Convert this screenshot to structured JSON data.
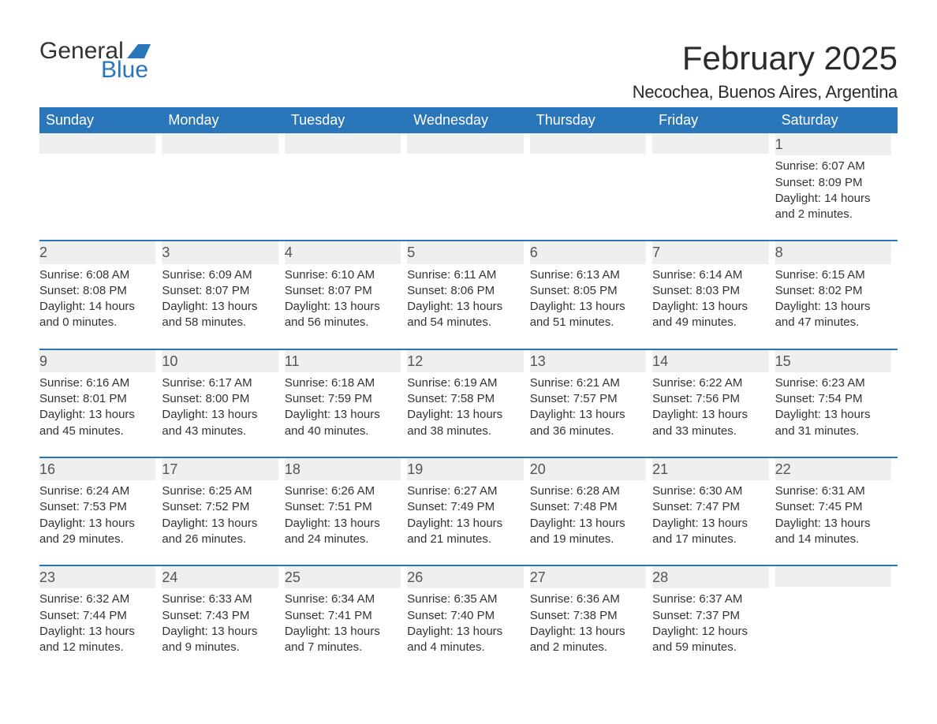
{
  "brand": {
    "general": "General",
    "blue": "Blue"
  },
  "header": {
    "month_title": "February 2025",
    "location": "Necochea, Buenos Aires, Argentina"
  },
  "colors": {
    "primary": "#2a76bb",
    "header_bg": "#2a76bb",
    "strip_bg": "#efefef",
    "text": "#333333",
    "day_num": "#555555",
    "bg": "#ffffff"
  },
  "dow": [
    "Sunday",
    "Monday",
    "Tuesday",
    "Wednesday",
    "Thursday",
    "Friday",
    "Saturday"
  ],
  "weeks": [
    [
      null,
      null,
      null,
      null,
      null,
      null,
      {
        "n": "1",
        "sr": "Sunrise: 6:07 AM",
        "ss": "Sunset: 8:09 PM",
        "dl": "Daylight: 14 hours and 2 minutes."
      }
    ],
    [
      {
        "n": "2",
        "sr": "Sunrise: 6:08 AM",
        "ss": "Sunset: 8:08 PM",
        "dl": "Daylight: 14 hours and 0 minutes."
      },
      {
        "n": "3",
        "sr": "Sunrise: 6:09 AM",
        "ss": "Sunset: 8:07 PM",
        "dl": "Daylight: 13 hours and 58 minutes."
      },
      {
        "n": "4",
        "sr": "Sunrise: 6:10 AM",
        "ss": "Sunset: 8:07 PM",
        "dl": "Daylight: 13 hours and 56 minutes."
      },
      {
        "n": "5",
        "sr": "Sunrise: 6:11 AM",
        "ss": "Sunset: 8:06 PM",
        "dl": "Daylight: 13 hours and 54 minutes."
      },
      {
        "n": "6",
        "sr": "Sunrise: 6:13 AM",
        "ss": "Sunset: 8:05 PM",
        "dl": "Daylight: 13 hours and 51 minutes."
      },
      {
        "n": "7",
        "sr": "Sunrise: 6:14 AM",
        "ss": "Sunset: 8:03 PM",
        "dl": "Daylight: 13 hours and 49 minutes."
      },
      {
        "n": "8",
        "sr": "Sunrise: 6:15 AM",
        "ss": "Sunset: 8:02 PM",
        "dl": "Daylight: 13 hours and 47 minutes."
      }
    ],
    [
      {
        "n": "9",
        "sr": "Sunrise: 6:16 AM",
        "ss": "Sunset: 8:01 PM",
        "dl": "Daylight: 13 hours and 45 minutes."
      },
      {
        "n": "10",
        "sr": "Sunrise: 6:17 AM",
        "ss": "Sunset: 8:00 PM",
        "dl": "Daylight: 13 hours and 43 minutes."
      },
      {
        "n": "11",
        "sr": "Sunrise: 6:18 AM",
        "ss": "Sunset: 7:59 PM",
        "dl": "Daylight: 13 hours and 40 minutes."
      },
      {
        "n": "12",
        "sr": "Sunrise: 6:19 AM",
        "ss": "Sunset: 7:58 PM",
        "dl": "Daylight: 13 hours and 38 minutes."
      },
      {
        "n": "13",
        "sr": "Sunrise: 6:21 AM",
        "ss": "Sunset: 7:57 PM",
        "dl": "Daylight: 13 hours and 36 minutes."
      },
      {
        "n": "14",
        "sr": "Sunrise: 6:22 AM",
        "ss": "Sunset: 7:56 PM",
        "dl": "Daylight: 13 hours and 33 minutes."
      },
      {
        "n": "15",
        "sr": "Sunrise: 6:23 AM",
        "ss": "Sunset: 7:54 PM",
        "dl": "Daylight: 13 hours and 31 minutes."
      }
    ],
    [
      {
        "n": "16",
        "sr": "Sunrise: 6:24 AM",
        "ss": "Sunset: 7:53 PM",
        "dl": "Daylight: 13 hours and 29 minutes."
      },
      {
        "n": "17",
        "sr": "Sunrise: 6:25 AM",
        "ss": "Sunset: 7:52 PM",
        "dl": "Daylight: 13 hours and 26 minutes."
      },
      {
        "n": "18",
        "sr": "Sunrise: 6:26 AM",
        "ss": "Sunset: 7:51 PM",
        "dl": "Daylight: 13 hours and 24 minutes."
      },
      {
        "n": "19",
        "sr": "Sunrise: 6:27 AM",
        "ss": "Sunset: 7:49 PM",
        "dl": "Daylight: 13 hours and 21 minutes."
      },
      {
        "n": "20",
        "sr": "Sunrise: 6:28 AM",
        "ss": "Sunset: 7:48 PM",
        "dl": "Daylight: 13 hours and 19 minutes."
      },
      {
        "n": "21",
        "sr": "Sunrise: 6:30 AM",
        "ss": "Sunset: 7:47 PM",
        "dl": "Daylight: 13 hours and 17 minutes."
      },
      {
        "n": "22",
        "sr": "Sunrise: 6:31 AM",
        "ss": "Sunset: 7:45 PM",
        "dl": "Daylight: 13 hours and 14 minutes."
      }
    ],
    [
      {
        "n": "23",
        "sr": "Sunrise: 6:32 AM",
        "ss": "Sunset: 7:44 PM",
        "dl": "Daylight: 13 hours and 12 minutes."
      },
      {
        "n": "24",
        "sr": "Sunrise: 6:33 AM",
        "ss": "Sunset: 7:43 PM",
        "dl": "Daylight: 13 hours and 9 minutes."
      },
      {
        "n": "25",
        "sr": "Sunrise: 6:34 AM",
        "ss": "Sunset: 7:41 PM",
        "dl": "Daylight: 13 hours and 7 minutes."
      },
      {
        "n": "26",
        "sr": "Sunrise: 6:35 AM",
        "ss": "Sunset: 7:40 PM",
        "dl": "Daylight: 13 hours and 4 minutes."
      },
      {
        "n": "27",
        "sr": "Sunrise: 6:36 AM",
        "ss": "Sunset: 7:38 PM",
        "dl": "Daylight: 13 hours and 2 minutes."
      },
      {
        "n": "28",
        "sr": "Sunrise: 6:37 AM",
        "ss": "Sunset: 7:37 PM",
        "dl": "Daylight: 12 hours and 59 minutes."
      },
      null
    ]
  ]
}
